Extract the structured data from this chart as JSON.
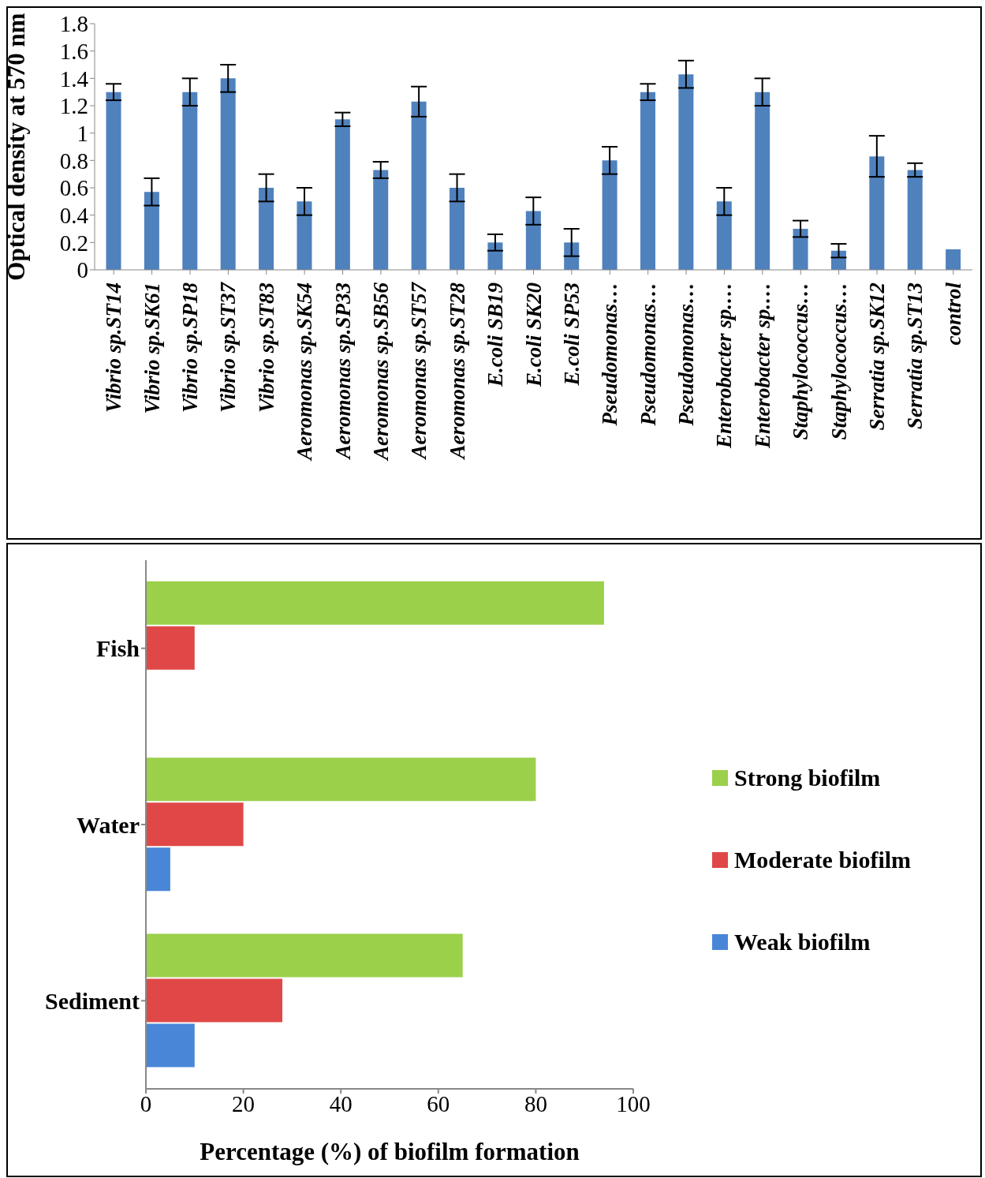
{
  "chart_data": [
    {
      "type": "bar",
      "ylabel": "Optical density at 570 nm",
      "categories": [
        "Vibrio sp.ST14",
        "Vibrio sp.SK61",
        "Vibrio sp.SP18",
        "Vibrio sp.ST37",
        "Vibrio sp.ST83",
        "Aeromonas sp.SK54",
        "Aeromonas sp.SP33",
        "Aeromonas sp.SB56",
        "Aeromonas sp.ST57",
        "Aeromonas sp.ST28",
        "E.coli SB19",
        "E.coli SK20",
        "E.coli SP53",
        "Pseudomonas…",
        "Pseudomonas…",
        "Pseudomonas…",
        "Enterobacter sp.…",
        "Enterobacter sp.…",
        "Staphylococcus…",
        "Staphylococcus…",
        "Serratia sp.SK12",
        "Serratia sp.ST13",
        "control"
      ],
      "values": [
        1.3,
        0.57,
        1.3,
        1.4,
        0.6,
        0.5,
        1.1,
        0.73,
        1.23,
        0.6,
        0.2,
        0.43,
        0.2,
        0.8,
        1.3,
        1.43,
        0.5,
        1.3,
        0.3,
        0.14,
        0.83,
        0.73,
        0.15
      ],
      "errors": [
        0.06,
        0.1,
        0.1,
        0.1,
        0.1,
        0.1,
        0.05,
        0.06,
        0.11,
        0.1,
        0.06,
        0.1,
        0.1,
        0.1,
        0.06,
        0.1,
        0.1,
        0.1,
        0.06,
        0.05,
        0.15,
        0.05,
        null
      ],
      "color": "#4f81bd",
      "ylim": [
        0,
        1.8
      ],
      "yticks": [
        0,
        0.2,
        0.4,
        0.6,
        0.8,
        1,
        1.2,
        1.4,
        1.6,
        1.8
      ],
      "grid": false,
      "legend": false
    },
    {
      "type": "bar",
      "orientation": "horizontal",
      "xlabel": "Percentage (%) of biofilm formation",
      "categories": [
        "Fish",
        "Water",
        "Sediment"
      ],
      "series": [
        {
          "name": "Strong biofilm",
          "color": "#9bd04a",
          "values": [
            94,
            80,
            65
          ]
        },
        {
          "name": "Moderate biofilm",
          "color": "#e04848",
          "values": [
            10,
            20,
            28
          ]
        },
        {
          "name": "Weak biofilm",
          "color": "#4a86d8",
          "values": [
            0,
            5,
            10
          ]
        }
      ],
      "xlim": [
        0,
        100
      ],
      "xticks": [
        0,
        20,
        40,
        60,
        80,
        100
      ],
      "grid": false,
      "legend": "right"
    }
  ]
}
